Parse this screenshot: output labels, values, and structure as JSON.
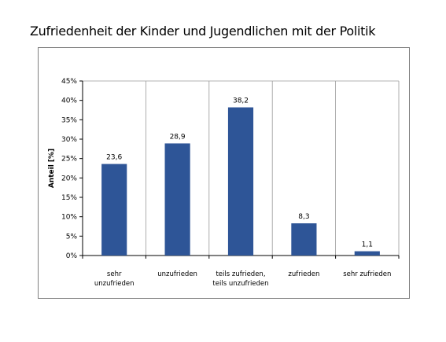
{
  "title": "Zufriedenheit der Kinder und Jugendlichen mit der Politik",
  "chart_data": {
    "type": "bar",
    "title": "Zufriedenheit der Kinder und Jugendlichen mit der Politik",
    "ylabel": "Anteil [%]",
    "xlabel": "",
    "categories": [
      "sehr unzufrieden",
      "unzufrieden",
      "teils zufrieden, teils unzufrieden",
      "zufrieden",
      "sehr zufrieden"
    ],
    "category_lines": [
      [
        "sehr",
        "unzufrieden"
      ],
      [
        "unzufrieden"
      ],
      [
        "teils zufrieden,",
        "teils unzufrieden"
      ],
      [
        "zufrieden"
      ],
      [
        "sehr zufrieden"
      ]
    ],
    "values": [
      23.6,
      28.9,
      38.2,
      8.3,
      1.1
    ],
    "data_labels": [
      "23,6",
      "28,9",
      "38,2",
      "8,3",
      "1,1"
    ],
    "yticks": [
      "0%",
      "5%",
      "10%",
      "15%",
      "20%",
      "25%",
      "30%",
      "35%",
      "40%",
      "45%"
    ],
    "ylim": [
      0,
      45
    ],
    "grid": "vertical",
    "legend": "none",
    "bar_color": "#2e5597",
    "grid_color": "#9a9a9a"
  }
}
